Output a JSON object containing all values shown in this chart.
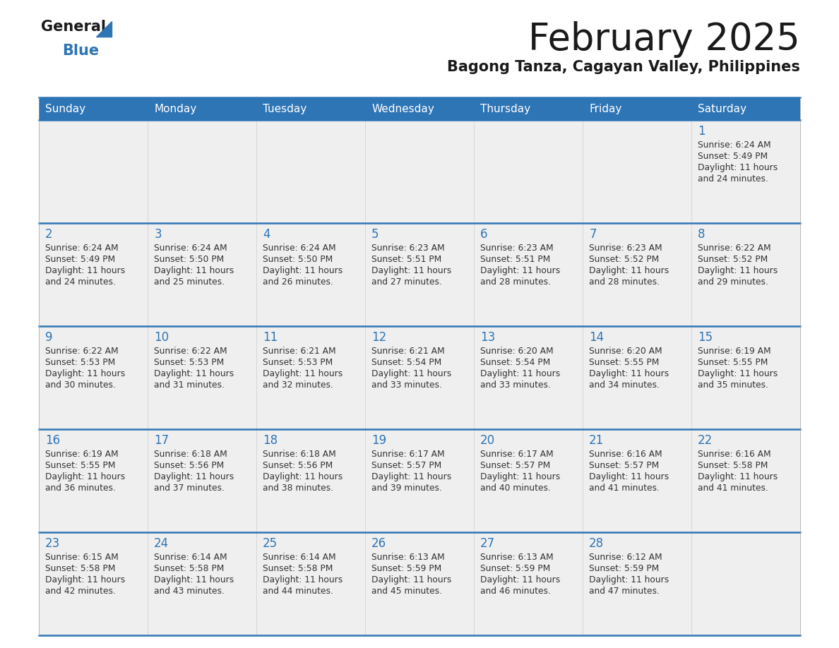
{
  "title": "February 2025",
  "subtitle": "Bagong Tanza, Cagayan Valley, Philippines",
  "header_bg": "#2E75B6",
  "header_text_color": "#FFFFFF",
  "cell_bg": "#EFEFEF",
  "separator_color": "#2E75B6",
  "day_num_color": "#2E75B6",
  "text_color": "#333333",
  "days_of_week": [
    "Sunday",
    "Monday",
    "Tuesday",
    "Wednesday",
    "Thursday",
    "Friday",
    "Saturday"
  ],
  "calendar_data": [
    [
      {
        "day": null
      },
      {
        "day": null
      },
      {
        "day": null
      },
      {
        "day": null
      },
      {
        "day": null
      },
      {
        "day": null
      },
      {
        "day": 1,
        "sunrise": "6:24 AM",
        "sunset": "5:49 PM",
        "daylight": "11 hours and 24 minutes"
      }
    ],
    [
      {
        "day": 2,
        "sunrise": "6:24 AM",
        "sunset": "5:49 PM",
        "daylight": "11 hours and 24 minutes"
      },
      {
        "day": 3,
        "sunrise": "6:24 AM",
        "sunset": "5:50 PM",
        "daylight": "11 hours and 25 minutes"
      },
      {
        "day": 4,
        "sunrise": "6:24 AM",
        "sunset": "5:50 PM",
        "daylight": "11 hours and 26 minutes"
      },
      {
        "day": 5,
        "sunrise": "6:23 AM",
        "sunset": "5:51 PM",
        "daylight": "11 hours and 27 minutes"
      },
      {
        "day": 6,
        "sunrise": "6:23 AM",
        "sunset": "5:51 PM",
        "daylight": "11 hours and 28 minutes"
      },
      {
        "day": 7,
        "sunrise": "6:23 AM",
        "sunset": "5:52 PM",
        "daylight": "11 hours and 28 minutes"
      },
      {
        "day": 8,
        "sunrise": "6:22 AM",
        "sunset": "5:52 PM",
        "daylight": "11 hours and 29 minutes"
      }
    ],
    [
      {
        "day": 9,
        "sunrise": "6:22 AM",
        "sunset": "5:53 PM",
        "daylight": "11 hours and 30 minutes"
      },
      {
        "day": 10,
        "sunrise": "6:22 AM",
        "sunset": "5:53 PM",
        "daylight": "11 hours and 31 minutes"
      },
      {
        "day": 11,
        "sunrise": "6:21 AM",
        "sunset": "5:53 PM",
        "daylight": "11 hours and 32 minutes"
      },
      {
        "day": 12,
        "sunrise": "6:21 AM",
        "sunset": "5:54 PM",
        "daylight": "11 hours and 33 minutes"
      },
      {
        "day": 13,
        "sunrise": "6:20 AM",
        "sunset": "5:54 PM",
        "daylight": "11 hours and 33 minutes"
      },
      {
        "day": 14,
        "sunrise": "6:20 AM",
        "sunset": "5:55 PM",
        "daylight": "11 hours and 34 minutes"
      },
      {
        "day": 15,
        "sunrise": "6:19 AM",
        "sunset": "5:55 PM",
        "daylight": "11 hours and 35 minutes"
      }
    ],
    [
      {
        "day": 16,
        "sunrise": "6:19 AM",
        "sunset": "5:55 PM",
        "daylight": "11 hours and 36 minutes"
      },
      {
        "day": 17,
        "sunrise": "6:18 AM",
        "sunset": "5:56 PM",
        "daylight": "11 hours and 37 minutes"
      },
      {
        "day": 18,
        "sunrise": "6:18 AM",
        "sunset": "5:56 PM",
        "daylight": "11 hours and 38 minutes"
      },
      {
        "day": 19,
        "sunrise": "6:17 AM",
        "sunset": "5:57 PM",
        "daylight": "11 hours and 39 minutes"
      },
      {
        "day": 20,
        "sunrise": "6:17 AM",
        "sunset": "5:57 PM",
        "daylight": "11 hours and 40 minutes"
      },
      {
        "day": 21,
        "sunrise": "6:16 AM",
        "sunset": "5:57 PM",
        "daylight": "11 hours and 41 minutes"
      },
      {
        "day": 22,
        "sunrise": "6:16 AM",
        "sunset": "5:58 PM",
        "daylight": "11 hours and 41 minutes"
      }
    ],
    [
      {
        "day": 23,
        "sunrise": "6:15 AM",
        "sunset": "5:58 PM",
        "daylight": "11 hours and 42 minutes"
      },
      {
        "day": 24,
        "sunrise": "6:14 AM",
        "sunset": "5:58 PM",
        "daylight": "11 hours and 43 minutes"
      },
      {
        "day": 25,
        "sunrise": "6:14 AM",
        "sunset": "5:58 PM",
        "daylight": "11 hours and 44 minutes"
      },
      {
        "day": 26,
        "sunrise": "6:13 AM",
        "sunset": "5:59 PM",
        "daylight": "11 hours and 45 minutes"
      },
      {
        "day": 27,
        "sunrise": "6:13 AM",
        "sunset": "5:59 PM",
        "daylight": "11 hours and 46 minutes"
      },
      {
        "day": 28,
        "sunrise": "6:12 AM",
        "sunset": "5:59 PM",
        "daylight": "11 hours and 47 minutes"
      },
      {
        "day": null
      }
    ]
  ]
}
